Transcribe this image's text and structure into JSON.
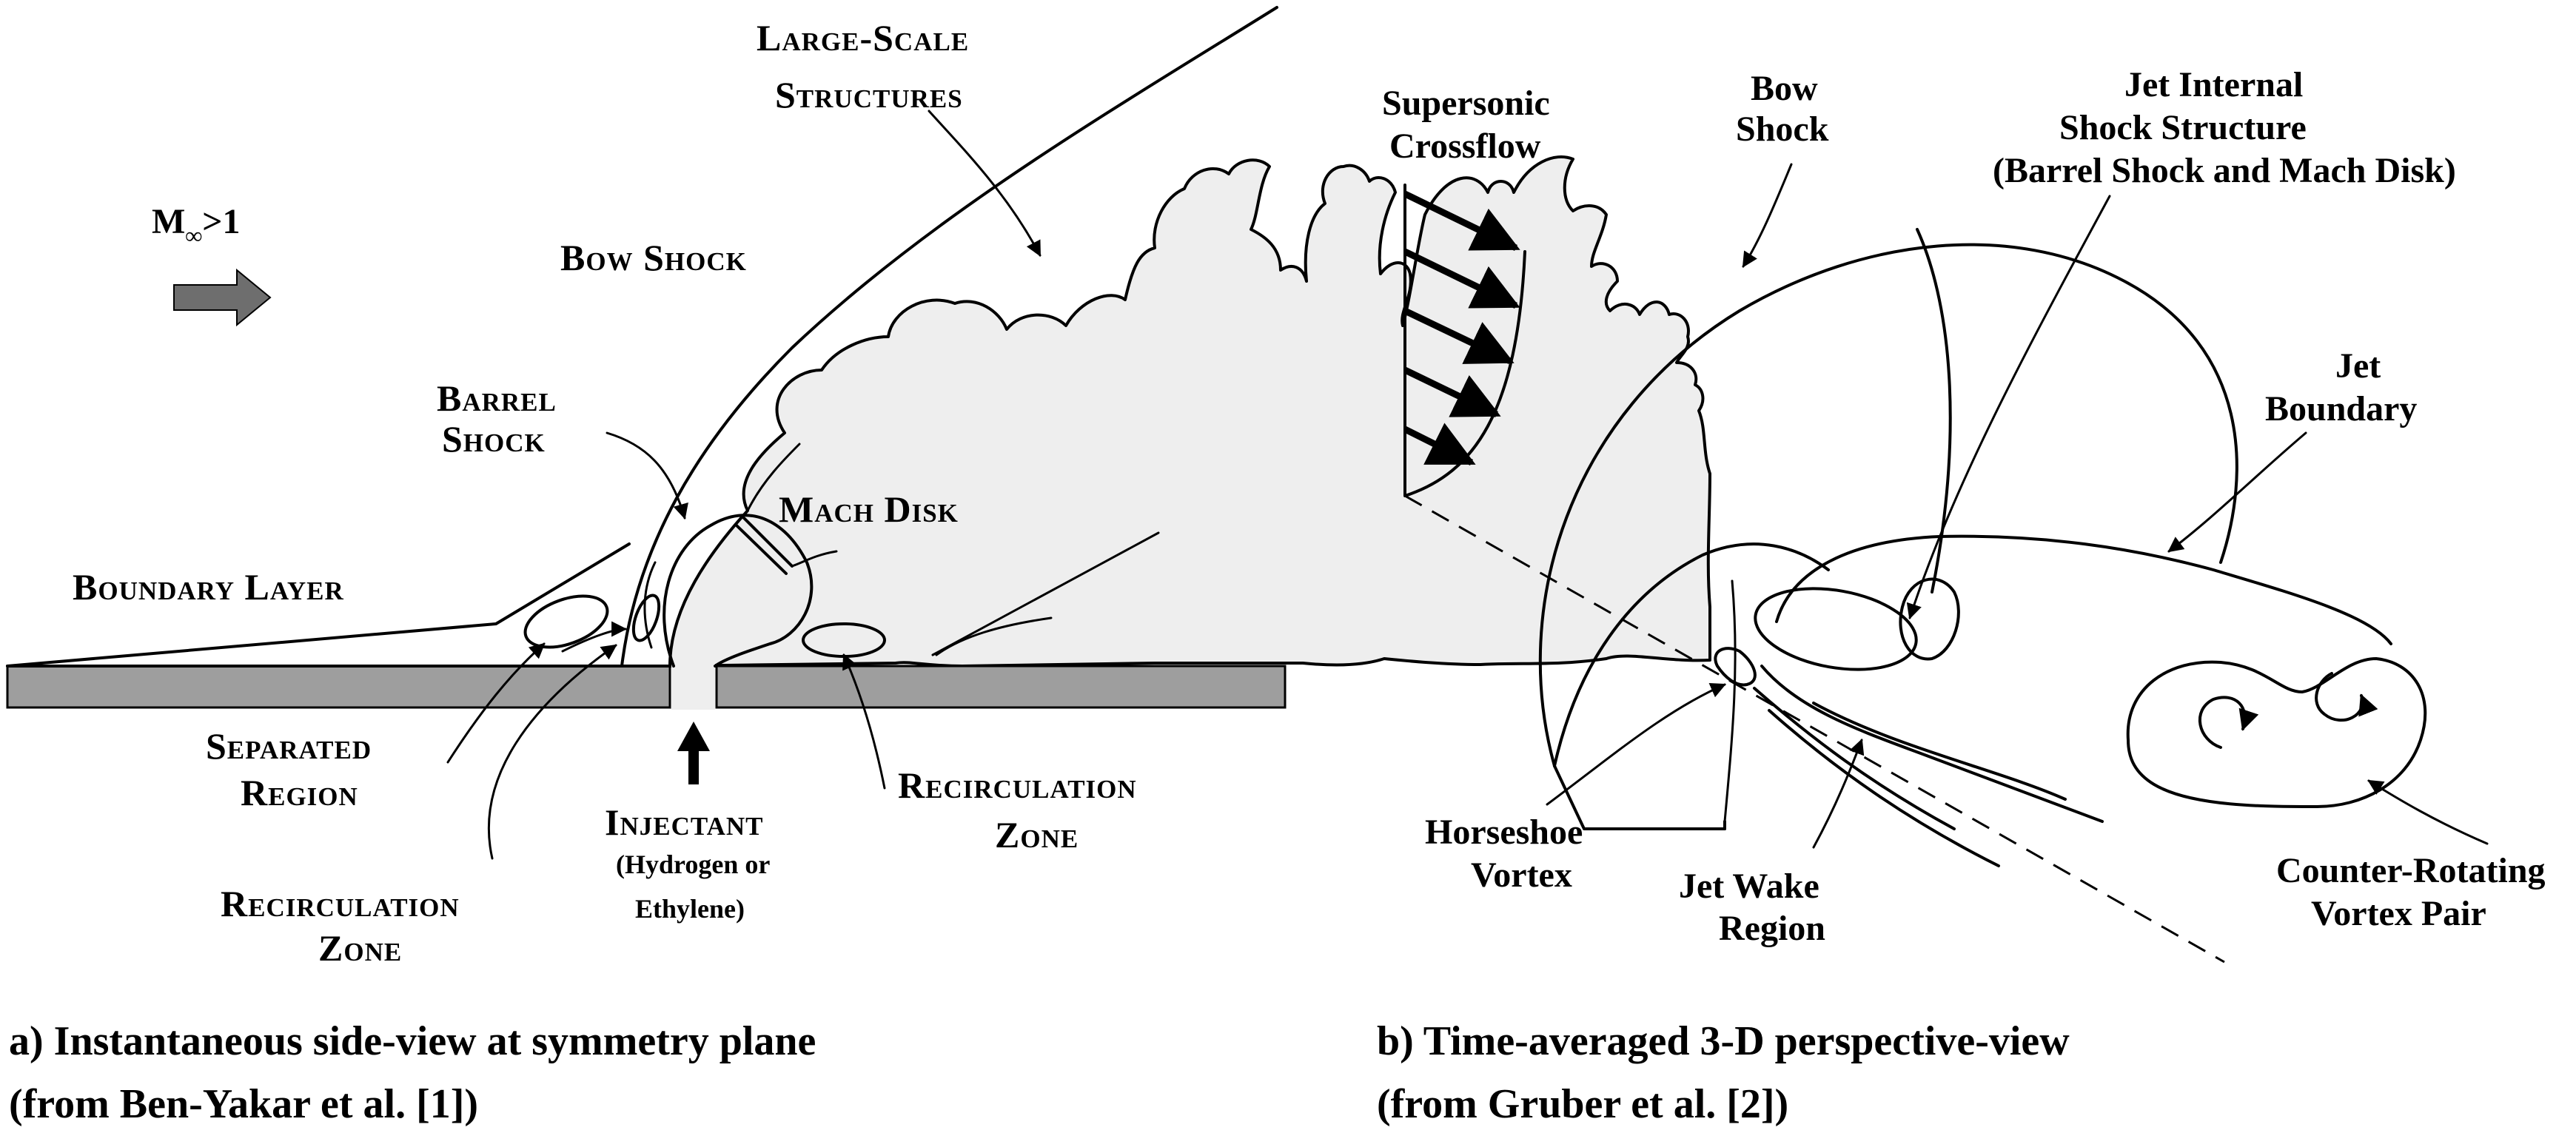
{
  "flow_condition": {
    "mach_symbol": "M",
    "mach_subscript": "∞",
    "mach_condition": ">1"
  },
  "panel_a": {
    "labels": {
      "large_scale_1": "Large-Scale",
      "large_scale_2": "Structures",
      "bow_shock": "Bow Shock",
      "barrel_1": "Barrel",
      "barrel_2": "Shock",
      "mach_disk": "Mach Disk",
      "boundary_layer": "Boundary Layer",
      "separated_1": "Separated",
      "separated_2": "Region",
      "injectant": "Injectant",
      "injectant_sub_1": "(Hydrogen or",
      "injectant_sub_2": "Ethylene)",
      "recirc_right_1": "Recirculation",
      "recirc_right_2": "Zone",
      "recirc_left_1": "Recirculation",
      "recirc_left_2": "Zone"
    },
    "caption_line_1": "a) Instantaneous side-view at symmetry plane",
    "caption_line_2": "(from Ben-Yakar et al. [1])"
  },
  "panel_b": {
    "labels": {
      "crossflow_1": "Supersonic",
      "crossflow_2": "Crossflow",
      "bow_1": "Bow",
      "bow_2": "Shock",
      "jet_internal_1": "Jet Internal",
      "jet_internal_2": "Shock Structure",
      "jet_internal_3": "(Barrel Shock and Mach Disk)",
      "jet_boundary_1": "Jet",
      "jet_boundary_2": "Boundary",
      "horseshoe_1": "Horseshoe",
      "horseshoe_2": "Vortex",
      "wake_1": "Jet Wake",
      "wake_2": "Region",
      "crvp_1": "Counter-Rotating",
      "crvp_2": "Vortex Pair"
    },
    "caption_line_1": "b) Time-averaged 3-D perspective-view",
    "caption_line_2": "(from Gruber et al. [2])"
  },
  "colors": {
    "plume_fill": "#eeeeee",
    "wall_fill": "#9e9e9e",
    "arrow_fill": "#6e6e6e",
    "ink": "#000000"
  }
}
